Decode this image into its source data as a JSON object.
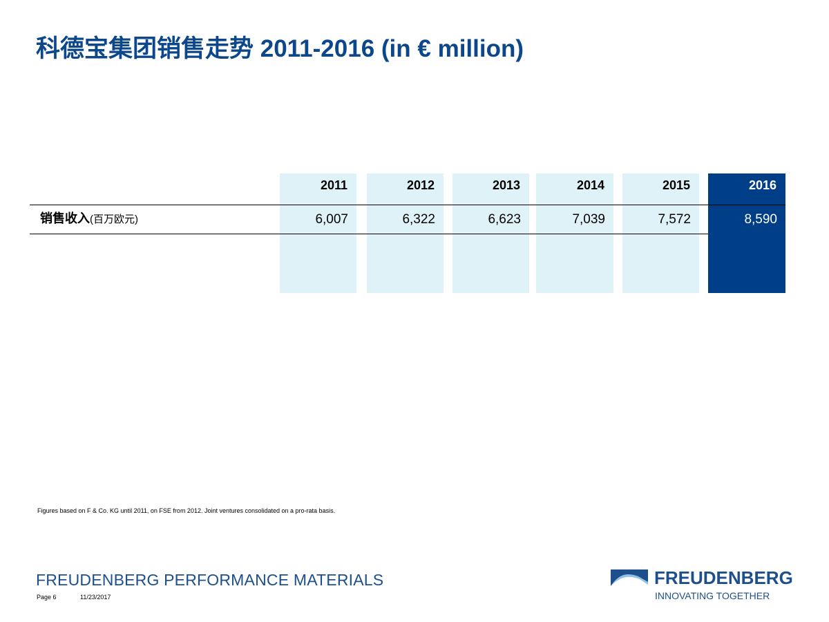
{
  "header": {
    "title": "科德宝集团销售走势 2011-2016 (in € million)"
  },
  "table": {
    "headers": [
      "2011",
      "2012",
      "2013",
      "2014",
      "2015",
      "2016"
    ],
    "row_label": "销售收入",
    "row_unit": "(百万欧元)",
    "values": [
      "6,007",
      "6,322",
      "6,623",
      "7,039",
      "7,572",
      "8,590"
    ]
  },
  "footnote": "Figures based on F & Co. KG until 2011, on FSE from 2012. Joint ventures consolidated on a pro-rata basis.",
  "footer": {
    "division": "FREUDENBERG PERFORMANCE MATERIALS",
    "page": "Page 6",
    "date": "11/23/2017",
    "brand": "FREUDENBERG",
    "slogan": "INNOVATING TOGETHER"
  }
}
